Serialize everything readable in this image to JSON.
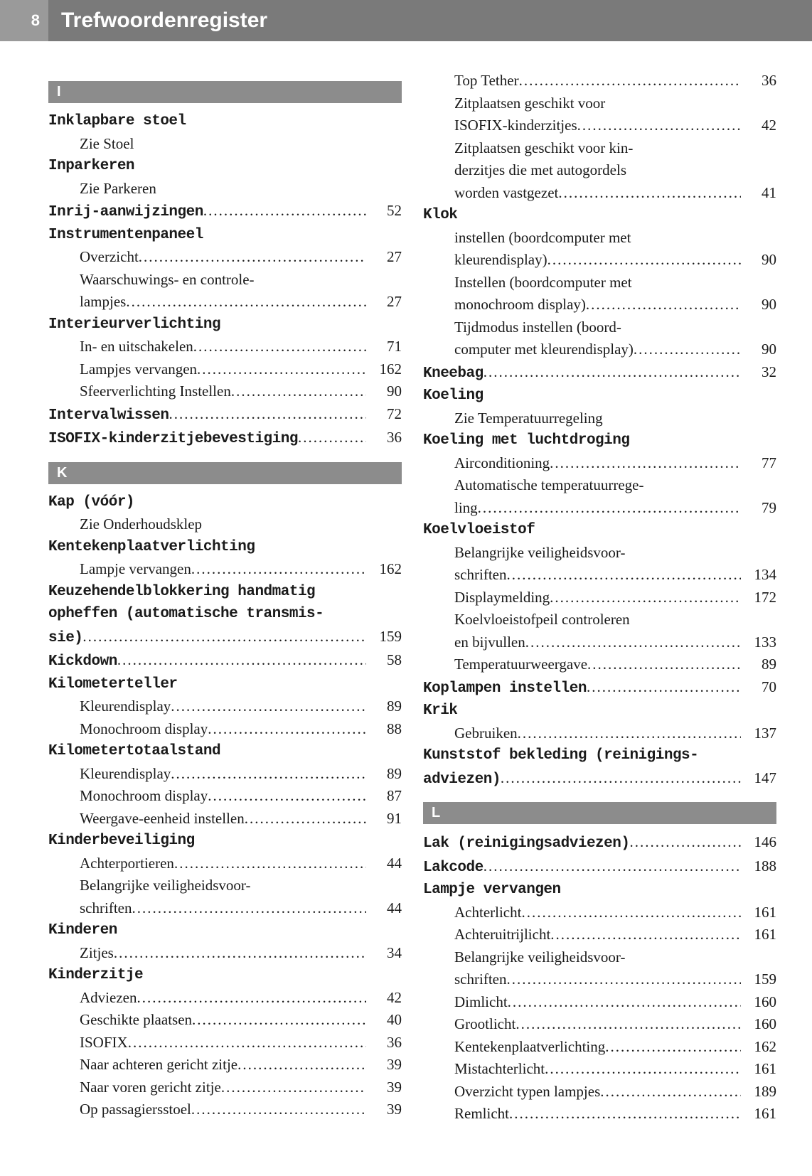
{
  "header": {
    "page_number": "8",
    "title": "Trefwoordenregister"
  },
  "sections": {
    "I": {
      "letter": "I",
      "left": [
        {
          "bold": true,
          "text": "Inklapbare stoel"
        },
        {
          "indent": true,
          "text": "Zie Stoel"
        },
        {
          "bold": true,
          "text": "Inparkeren"
        },
        {
          "indent": true,
          "text": "Zie Parkeren"
        },
        {
          "bold": true,
          "text": "Inrij-aanwijzingen",
          "page": "52",
          "dots": true
        },
        {
          "bold": true,
          "text": "Instrumentenpaneel"
        },
        {
          "indent": true,
          "text": "Overzicht",
          "page": "27",
          "dots": true
        },
        {
          "indent": true,
          "text": "Waarschuwings- en controle-"
        },
        {
          "indent": true,
          "text": "lampjes",
          "page": "27",
          "dots": true
        },
        {
          "bold": true,
          "text": "Interieurverlichting"
        },
        {
          "indent": true,
          "text": "In- en uitschakelen",
          "page": "71",
          "dots": true
        },
        {
          "indent": true,
          "text": "Lampjes vervangen",
          "page": "162",
          "dots": true
        },
        {
          "indent": true,
          "text": "Sfeerverlichting Instellen",
          "page": "90",
          "dots": true
        },
        {
          "bold": true,
          "text": "Intervalwissen",
          "page": "72",
          "dots": true
        },
        {
          "bold": true,
          "text": "ISOFIX-kinderzitjebevestiging",
          "page": "36",
          "dots": true
        }
      ]
    },
    "K_left": {
      "letter": "K",
      "entries": [
        {
          "bold": true,
          "text": "Kap (vóór)"
        },
        {
          "indent": true,
          "text": "Zie Onderhoudsklep"
        },
        {
          "bold": true,
          "text": "Kentekenplaatverlichting"
        },
        {
          "indent": true,
          "text": "Lampje vervangen",
          "page": "162",
          "dots": true
        },
        {
          "bold": true,
          "text": "Keuzehendelblokkering handmatig"
        },
        {
          "bold": true,
          "text": "opheffen (automatische transmis-"
        },
        {
          "bold": true,
          "text": "sie)",
          "page": "159",
          "dots": true
        },
        {
          "bold": true,
          "text": "Kickdown",
          "page": "58",
          "dots": true
        },
        {
          "bold": true,
          "text": "Kilometerteller"
        },
        {
          "indent": true,
          "text": "Kleurendisplay",
          "page": "89",
          "dots": true
        },
        {
          "indent": true,
          "text": "Monochroom display",
          "page": "88",
          "dots": true
        },
        {
          "bold": true,
          "text": "Kilometertotaalstand"
        },
        {
          "indent": true,
          "text": "Kleurendisplay",
          "page": "89",
          "dots": true
        },
        {
          "indent": true,
          "text": "Monochroom display",
          "page": "87",
          "dots": true
        },
        {
          "indent": true,
          "text": "Weergave-eenheid instellen",
          "page": "91",
          "dots": true
        },
        {
          "bold": true,
          "text": "Kinderbeveiliging"
        },
        {
          "indent": true,
          "text": "Achterportieren",
          "page": "44",
          "dots": true
        },
        {
          "indent": true,
          "text": "Belangrijke veiligheidsvoor-"
        },
        {
          "indent": true,
          "text": "schriften",
          "page": "44",
          "dots": true
        },
        {
          "bold": true,
          "text": "Kinderen"
        },
        {
          "indent": true,
          "text": "Zitjes",
          "page": "34",
          "dots": true
        },
        {
          "bold": true,
          "text": "Kinderzitje"
        },
        {
          "indent": true,
          "text": "Adviezen",
          "page": "42",
          "dots": true
        },
        {
          "indent": true,
          "text": "Geschikte plaatsen",
          "page": "40",
          "dots": true
        },
        {
          "indent": true,
          "text": "ISOFIX",
          "page": "36",
          "dots": true
        },
        {
          "indent": true,
          "text": "Naar achteren gericht zitje",
          "page": "39",
          "dots": true
        },
        {
          "indent": true,
          "text": "Naar voren gericht zitje",
          "page": "39",
          "dots": true
        },
        {
          "indent": true,
          "text": "Op passagiersstoel",
          "page": "39",
          "dots": true
        }
      ]
    },
    "K_right_top": [
      {
        "indent": true,
        "text": "Top Tether",
        "page": "36",
        "dots": true
      },
      {
        "indent": true,
        "text": "Zitplaatsen geschikt voor"
      },
      {
        "indent": true,
        "text": "ISOFIX-kinderzitjes",
        "page": "42",
        "dots": true
      },
      {
        "indent": true,
        "text": "Zitplaatsen geschikt voor kin-"
      },
      {
        "indent": true,
        "text": "derzitjes die met autogordels"
      },
      {
        "indent": true,
        "text": "worden vastgezet",
        "page": "41",
        "dots": true
      },
      {
        "bold": true,
        "text": "Klok"
      },
      {
        "indent": true,
        "text": "instellen (boordcomputer met"
      },
      {
        "indent": true,
        "text": "kleurendisplay)",
        "page": "90",
        "dots": true
      },
      {
        "indent": true,
        "text": "Instellen (boordcomputer met"
      },
      {
        "indent": true,
        "text": "monochroom display)",
        "page": "90",
        "dots": true
      },
      {
        "indent": true,
        "text": "Tijdmodus instellen (boord-"
      },
      {
        "indent": true,
        "text": "computer met kleurendisplay)",
        "page": "90",
        "dots": true
      },
      {
        "bold": true,
        "text": "Kneebag",
        "page": "32",
        "dots": true
      },
      {
        "bold": true,
        "text": "Koeling"
      },
      {
        "indent": true,
        "text": "Zie Temperatuurregeling"
      },
      {
        "bold": true,
        "text": "Koeling met luchtdroging"
      },
      {
        "indent": true,
        "text": "Airconditioning",
        "page": "77",
        "dots": true
      },
      {
        "indent": true,
        "text": "Automatische temperatuurrege-"
      },
      {
        "indent": true,
        "text": "ling",
        "page": "79",
        "dots": true
      },
      {
        "bold": true,
        "text": "Koelvloeistof"
      },
      {
        "indent": true,
        "text": "Belangrijke veiligheidsvoor-"
      },
      {
        "indent": true,
        "text": "schriften",
        "page": "134",
        "dots": true
      },
      {
        "indent": true,
        "text": "Displaymelding",
        "page": "172",
        "dots": true
      },
      {
        "indent": true,
        "text": "Koelvloeistofpeil controleren"
      },
      {
        "indent": true,
        "text": "en bijvullen",
        "page": "133",
        "dots": true
      },
      {
        "indent": true,
        "text": "Temperatuurweergave",
        "page": "89",
        "dots": true
      },
      {
        "bold": true,
        "text": "Koplampen instellen",
        "page": "70",
        "dots": true
      },
      {
        "bold": true,
        "text": "Krik"
      },
      {
        "indent": true,
        "text": "Gebruiken",
        "page": "137",
        "dots": true
      },
      {
        "bold": true,
        "text": "Kunststof bekleding (reinigings-"
      },
      {
        "bold": true,
        "text": "adviezen)",
        "page": "147",
        "dots": true
      }
    ],
    "L": {
      "letter": "L",
      "entries": [
        {
          "bold": true,
          "text": "Lak (reinigingsadviezen)",
          "page": "146",
          "dots": true
        },
        {
          "bold": true,
          "text": "Lakcode",
          "page": "188",
          "dots": true
        },
        {
          "bold": true,
          "text": "Lampje vervangen"
        },
        {
          "indent": true,
          "text": "Achterlicht",
          "page": "161",
          "dots": true
        },
        {
          "indent": true,
          "text": "Achteruitrijlicht",
          "page": "161",
          "dots": true
        },
        {
          "indent": true,
          "text": "Belangrijke veiligheidsvoor-"
        },
        {
          "indent": true,
          "text": "schriften",
          "page": "159",
          "dots": true
        },
        {
          "indent": true,
          "text": "Dimlicht",
          "page": "160",
          "dots": true
        },
        {
          "indent": true,
          "text": "Grootlicht",
          "page": "160",
          "dots": true
        },
        {
          "indent": true,
          "text": "Kentekenplaatverlichting",
          "page": "162",
          "dots": true
        },
        {
          "indent": true,
          "text": "Mistachterlicht",
          "page": "161",
          "dots": true
        },
        {
          "indent": true,
          "text": "Overzicht typen lampjes",
          "page": "189",
          "dots": true
        },
        {
          "indent": true,
          "text": "Remlicht",
          "page": "161",
          "dots": true
        }
      ]
    }
  }
}
